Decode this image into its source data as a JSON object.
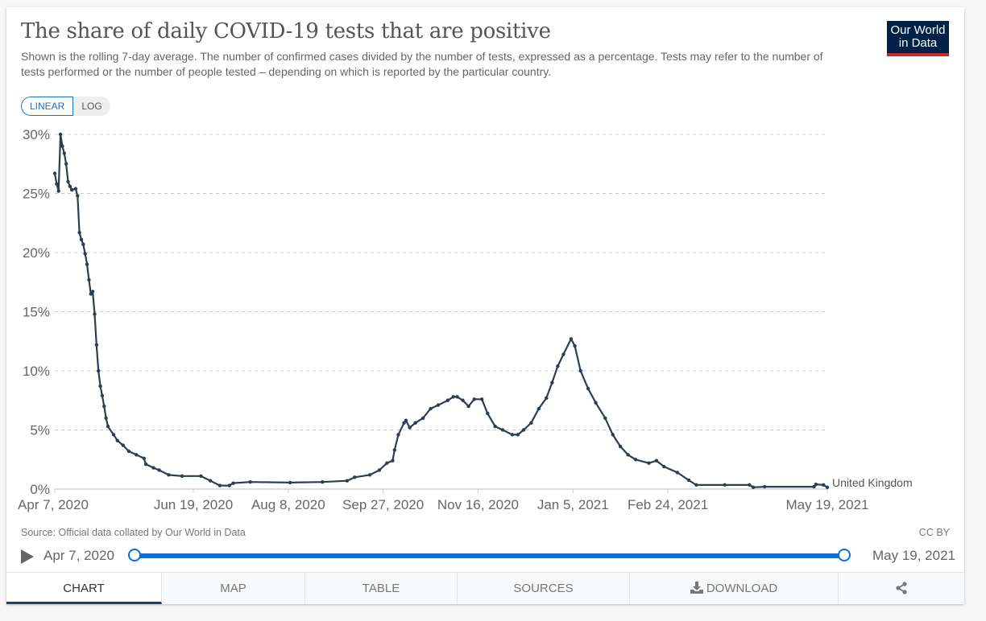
{
  "header": {
    "title": "The share of daily COVID-19 tests that are positive",
    "subtitle": "Shown is the rolling 7-day average. The number of confirmed cases divided by the number of tests, expressed as a percentage. Tests may refer to the number of tests performed or the number of people tested – depending on which is reported by the particular country.",
    "logo_line1": "Our World",
    "logo_line2": "in Data"
  },
  "controls": {
    "linear_label": "LINEAR",
    "log_label": "LOG",
    "active_scale": "linear"
  },
  "colors": {
    "line": "#2c3e50",
    "accent": "#0b6ed8",
    "logo_bg": "#002147",
    "logo_stripe": "#ce261e"
  },
  "chart_data": {
    "type": "line",
    "title": "The share of daily COVID-19 tests that are positive",
    "xlabel": "",
    "ylabel": "",
    "ylim": [
      0,
      30
    ],
    "y_ticks": [
      0,
      5,
      10,
      15,
      20,
      25,
      30
    ],
    "y_tick_labels": [
      "0%",
      "5%",
      "10%",
      "15%",
      "20%",
      "25%",
      "30%"
    ],
    "x_start_label": "Apr 7, 2020",
    "x_range_days": [
      0,
      407
    ],
    "x_ticks": [
      {
        "day": 0,
        "label": "Apr 7, 2020"
      },
      {
        "day": 73,
        "label": "Jun 19, 2020"
      },
      {
        "day": 123,
        "label": "Aug 8, 2020"
      },
      {
        "day": 173,
        "label": "Sep 27, 2020"
      },
      {
        "day": 223,
        "label": "Nov 16, 2020"
      },
      {
        "day": 273,
        "label": "Jan 5, 2021"
      },
      {
        "day": 323,
        "label": "Feb 24, 2021"
      },
      {
        "day": 407,
        "label": "May 19, 2021"
      }
    ],
    "grid": "horizontal-dashed",
    "legend": "inline-end-label",
    "series": [
      {
        "name": "United Kingdom",
        "x_days": [
          0,
          1,
          2,
          3,
          4,
          5,
          6,
          7,
          8,
          9,
          11,
          12,
          13,
          14,
          15,
          16,
          17,
          18,
          19,
          20,
          21,
          22,
          23,
          24,
          25,
          26,
          27,
          28,
          31,
          33,
          36,
          39,
          43,
          47,
          48,
          52,
          55,
          60,
          67,
          77,
          82,
          87,
          92,
          94,
          103,
          124,
          141,
          154,
          158,
          166,
          171,
          175,
          178,
          179,
          181,
          184,
          185,
          187,
          190,
          194,
          198,
          202,
          207,
          210,
          212,
          215,
          218,
          221,
          225,
          228,
          232,
          236,
          241,
          244,
          247,
          251,
          255,
          259,
          262,
          265,
          268,
          272,
          274,
          277,
          281,
          285,
          290,
          294,
          298,
          302,
          306,
          313,
          317,
          321,
          328,
          334,
          338,
          353,
          366,
          368,
          374,
          400,
          401,
          405,
          407
        ],
        "values": [
          26.7,
          25.8,
          25.2,
          30.0,
          29.0,
          28.4,
          27.5,
          26.0,
          25.6,
          25.3,
          25.4,
          24.8,
          21.7,
          21.1,
          20.7,
          19.9,
          19.0,
          17.7,
          16.5,
          16.7,
          14.8,
          12.2,
          10.0,
          8.7,
          7.9,
          7.0,
          6.0,
          5.3,
          4.6,
          4.1,
          3.7,
          3.2,
          2.9,
          2.6,
          2.1,
          1.8,
          1.6,
          1.2,
          1.1,
          1.1,
          0.7,
          0.3,
          0.3,
          0.5,
          0.6,
          0.55,
          0.6,
          0.7,
          1.0,
          1.2,
          1.6,
          2.2,
          2.4,
          3.3,
          4.6,
          5.6,
          5.8,
          5.2,
          5.6,
          6.0,
          6.8,
          7.1,
          7.5,
          7.8,
          7.8,
          7.5,
          7.0,
          7.6,
          7.6,
          6.4,
          5.3,
          5.0,
          4.6,
          4.6,
          5.0,
          5.6,
          6.8,
          7.7,
          9.0,
          10.4,
          11.4,
          12.7,
          12.1,
          10.0,
          8.5,
          7.3,
          6.0,
          4.6,
          3.6,
          2.9,
          2.5,
          2.2,
          2.4,
          1.9,
          1.4,
          0.75,
          0.35,
          0.35,
          0.35,
          0.15,
          0.2,
          0.2,
          0.4,
          0.35,
          0.15
        ]
      }
    ]
  },
  "footer": {
    "source": "Source: Official data collated by Our World in Data",
    "license": "CC BY"
  },
  "timeline": {
    "start_label": "Apr 7, 2020",
    "end_label": "May 19, 2021",
    "start_fraction": 0,
    "end_fraction": 1
  },
  "tabs": [
    {
      "label": "CHART",
      "active": true
    },
    {
      "label": "MAP",
      "active": false
    },
    {
      "label": "TABLE",
      "active": false
    },
    {
      "label": "SOURCES",
      "active": false
    },
    {
      "label": "DOWNLOAD",
      "active": false,
      "icon": "download-icon"
    },
    {
      "label": "",
      "active": false,
      "icon": "share-icon"
    }
  ]
}
